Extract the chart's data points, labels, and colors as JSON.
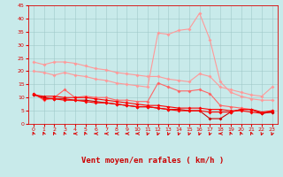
{
  "xlabel": "Vent moyen/en rafales ( km/h )",
  "x_values": [
    0,
    1,
    2,
    3,
    4,
    5,
    6,
    7,
    8,
    9,
    10,
    11,
    12,
    13,
    14,
    15,
    16,
    17,
    18,
    19,
    20,
    21,
    22,
    23
  ],
  "series": [
    {
      "color": "#ff9999",
      "linewidth": 0.8,
      "markersize": 2.0,
      "data": [
        23.5,
        22.5,
        23.5,
        23.5,
        23.0,
        22.0,
        21.0,
        20.5,
        19.5,
        19.0,
        18.5,
        18.0,
        18.0,
        17.0,
        16.5,
        16.0,
        19.0,
        18.0,
        14.0,
        13.0,
        12.0,
        11.0,
        10.5,
        14.0
      ]
    },
    {
      "color": "#ff9999",
      "linewidth": 0.8,
      "markersize": 2.0,
      "data": [
        20.0,
        19.5,
        18.5,
        19.5,
        18.5,
        18.0,
        17.0,
        16.5,
        15.5,
        15.0,
        14.5,
        14.0,
        34.5,
        34.0,
        35.5,
        36.0,
        42.0,
        32.0,
        16.0,
        12.0,
        10.5,
        9.5,
        9.0,
        9.0
      ]
    },
    {
      "color": "#ff6666",
      "linewidth": 0.8,
      "markersize": 2.0,
      "data": [
        11.5,
        9.0,
        10.0,
        13.0,
        10.0,
        10.5,
        10.0,
        10.0,
        9.0,
        9.0,
        8.5,
        8.5,
        15.5,
        14.0,
        12.5,
        12.5,
        13.0,
        11.5,
        7.0,
        6.5,
        6.0,
        5.5,
        4.0,
        5.0
      ]
    },
    {
      "color": "#ff0000",
      "linewidth": 0.8,
      "markersize": 2.0,
      "data": [
        11.0,
        10.5,
        10.5,
        10.0,
        10.0,
        10.0,
        9.5,
        9.0,
        8.5,
        8.0,
        7.5,
        7.0,
        7.0,
        6.5,
        6.0,
        6.0,
        6.0,
        5.5,
        5.5,
        5.0,
        5.0,
        4.5,
        4.0,
        4.5
      ]
    },
    {
      "color": "#cc0000",
      "linewidth": 0.8,
      "markersize": 2.0,
      "data": [
        11.0,
        10.0,
        9.5,
        9.5,
        9.0,
        9.0,
        8.5,
        8.0,
        7.5,
        7.0,
        6.5,
        6.5,
        6.0,
        5.5,
        5.5,
        5.0,
        5.0,
        2.0,
        2.0,
        4.5,
        5.5,
        5.5,
        4.0,
        4.5
      ]
    },
    {
      "color": "#ff0000",
      "linewidth": 0.8,
      "markersize": 2.0,
      "data": [
        11.5,
        9.5,
        9.5,
        9.0,
        9.0,
        8.5,
        8.0,
        8.0,
        7.5,
        7.0,
        6.5,
        6.5,
        6.0,
        5.5,
        5.0,
        5.0,
        5.0,
        4.5,
        4.5,
        4.5,
        5.5,
        5.5,
        4.5,
        5.0
      ]
    }
  ],
  "ylim": [
    0,
    45
  ],
  "yticks": [
    0,
    5,
    10,
    15,
    20,
    25,
    30,
    35,
    40,
    45
  ],
  "xticks": [
    0,
    1,
    2,
    3,
    4,
    5,
    6,
    7,
    8,
    9,
    10,
    11,
    12,
    13,
    14,
    15,
    16,
    17,
    18,
    19,
    20,
    21,
    22,
    23
  ],
  "bg_color": "#c8eaea",
  "grid_color": "#a0c8c8",
  "arrow_color": "#dd0000",
  "tick_color": "#dd0000",
  "label_color": "#cc0000",
  "xlabel_fontsize": 6.5,
  "tick_fontsize": 4.5
}
